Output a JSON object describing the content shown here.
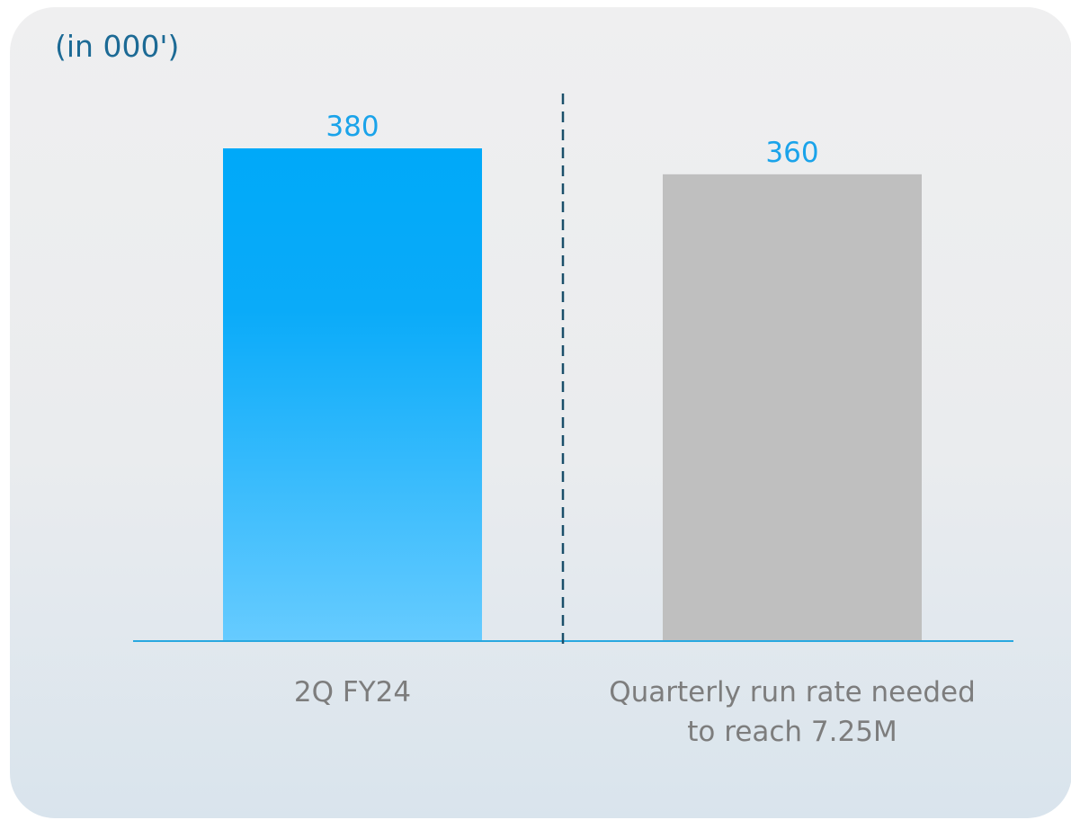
{
  "chart_data": {
    "type": "bar",
    "units_label": "(in 000')",
    "categories": [
      "2Q FY24",
      "Quarterly run rate needed to reach 7.25M"
    ],
    "category_lines": [
      [
        "2Q FY24"
      ],
      [
        "Quarterly run rate needed",
        "to reach 7.25M"
      ]
    ],
    "values": [
      380,
      360
    ],
    "value_labels": [
      "380",
      "360"
    ],
    "bar_styles": [
      "blue-gradient",
      "gray"
    ],
    "colors": {
      "bar_blue_top": "#00a9f9",
      "bar_blue_mid": "#0aabf9",
      "bar_blue_bottom": "#66cbff",
      "bar_gray": "#bfbfbf",
      "value_label": "#1aa3ea",
      "units_label": "#1c6a95",
      "baseline": "#29a8e0",
      "divider": "#1a4f6a",
      "category_label": "#7d7d7d"
    },
    "divider": "dashed vertical line between the two bars",
    "legend": "none",
    "grid": false
  }
}
